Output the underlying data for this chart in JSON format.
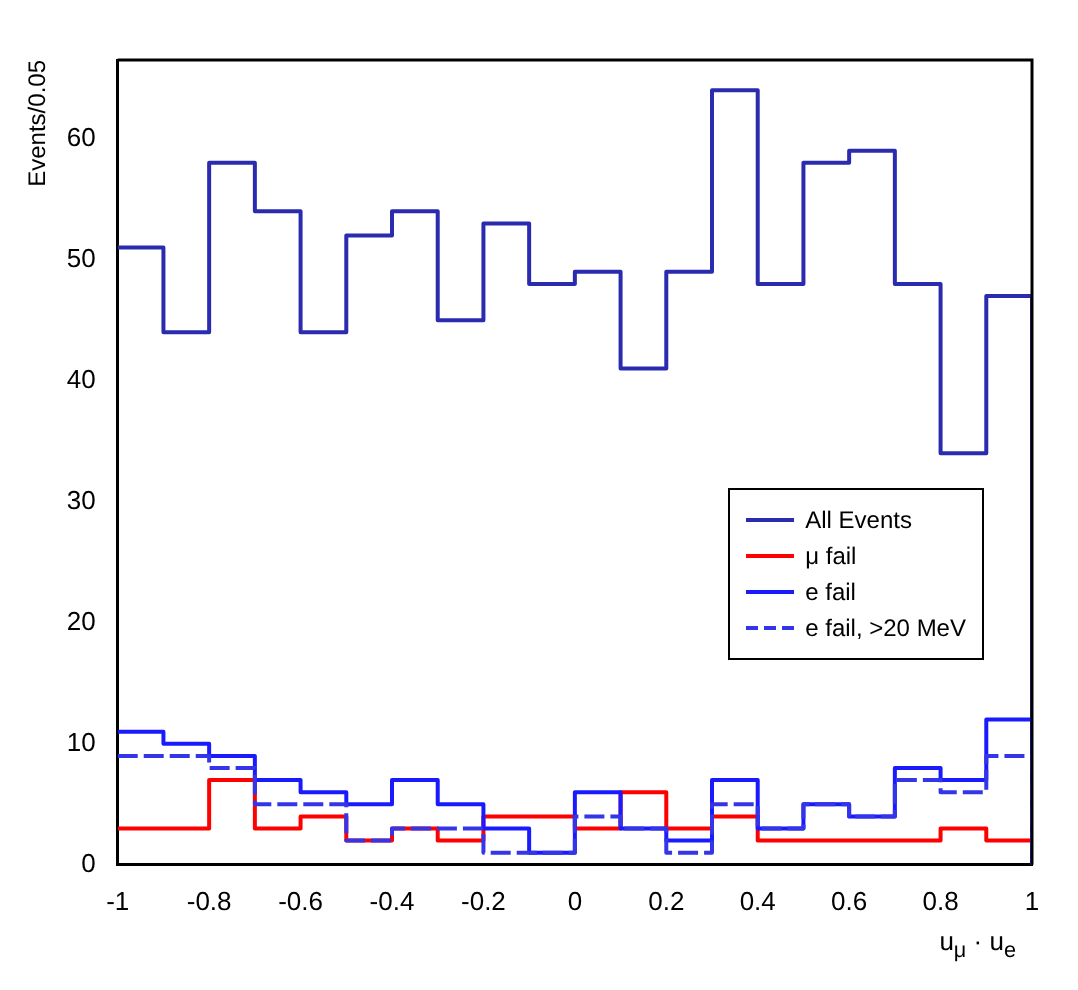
{
  "chart_data": {
    "type": "histogram",
    "ylabel": "Events/0.05",
    "xlabel": "u$_{μ}$ · u$_{e}$",
    "bins": [
      -1,
      -0.9,
      -0.8,
      -0.7,
      -0.6,
      -0.5,
      -0.4,
      -0.3,
      -0.2,
      -0.1,
      0,
      0.1,
      0.2,
      0.3,
      0.4,
      0.5,
      0.6,
      0.7,
      0.8,
      0.9,
      1
    ],
    "series": [
      {
        "name": "All Events",
        "color": "#2b2bb0",
        "values": [
          51,
          44,
          58,
          54,
          44,
          52,
          54,
          45,
          53,
          48,
          49,
          41,
          49,
          64,
          48,
          58,
          59,
          48,
          34,
          47
        ]
      },
      {
        "name": "μ fail",
        "color": "#ff0000",
        "values": [
          3,
          3,
          7,
          3,
          4,
          2,
          3,
          2,
          4,
          4,
          3,
          6,
          3,
          4,
          2,
          2,
          2,
          2,
          3,
          2
        ]
      },
      {
        "name": "e fail",
        "color": "#1a1aff",
        "values": [
          11,
          10,
          9,
          7,
          6,
          5,
          7,
          5,
          3,
          1,
          6,
          3,
          2,
          7,
          3,
          5,
          4,
          8,
          7,
          12
        ]
      },
      {
        "name": "e fail, >20 MeV",
        "color": "#3535e8",
        "line_style": "dashed",
        "values": [
          9,
          9,
          8,
          5,
          5,
          2,
          3,
          3,
          1,
          1,
          4,
          3,
          1,
          5,
          3,
          5,
          4,
          7,
          6,
          9
        ]
      }
    ],
    "xlim": [
      -1,
      1
    ],
    "xticks": [
      -1,
      -0.8,
      -0.6,
      -0.4,
      -0.2,
      0,
      0.2,
      0.4,
      0.6,
      0.8,
      1
    ],
    "ylim": [
      0,
      66.5
    ],
    "yticks": [
      0,
      10,
      20,
      30,
      40,
      50,
      60
    ],
    "grid": false,
    "legend": "right"
  }
}
